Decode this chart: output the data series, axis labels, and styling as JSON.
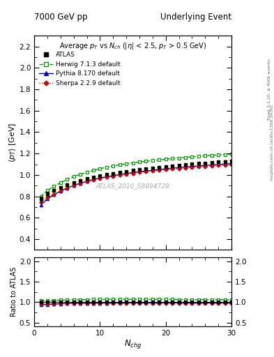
{
  "title_left": "7000 GeV pp",
  "title_right": "Underlying Event",
  "watermark": "ATLAS_2010_S8894728",
  "atlas_x": [
    1,
    2,
    3,
    4,
    5,
    6,
    7,
    8,
    9,
    10,
    11,
    12,
    13,
    14,
    15,
    16,
    17,
    18,
    19,
    20,
    21,
    22,
    23,
    24,
    25,
    26,
    27,
    28,
    29,
    30
  ],
  "atlas_y": [
    0.775,
    0.825,
    0.855,
    0.885,
    0.91,
    0.93,
    0.95,
    0.965,
    0.98,
    0.993,
    1.005,
    1.015,
    1.025,
    1.033,
    1.042,
    1.05,
    1.057,
    1.064,
    1.07,
    1.077,
    1.083,
    1.09,
    1.096,
    1.102,
    1.107,
    1.112,
    1.116,
    1.121,
    1.126,
    1.13
  ],
  "atlas_yerr": [
    0.02,
    0.018,
    0.015,
    0.013,
    0.012,
    0.011,
    0.01,
    0.01,
    0.009,
    0.009,
    0.008,
    0.008,
    0.008,
    0.008,
    0.008,
    0.007,
    0.007,
    0.007,
    0.007,
    0.007,
    0.007,
    0.007,
    0.007,
    0.007,
    0.007,
    0.007,
    0.007,
    0.007,
    0.007,
    0.007
  ],
  "herwig_x": [
    1,
    2,
    3,
    4,
    5,
    6,
    7,
    8,
    9,
    10,
    11,
    12,
    13,
    14,
    15,
    16,
    17,
    18,
    19,
    20,
    21,
    22,
    23,
    24,
    25,
    26,
    27,
    28,
    29,
    30
  ],
  "herwig_y": [
    0.8,
    0.855,
    0.893,
    0.928,
    0.958,
    0.985,
    1.005,
    1.025,
    1.043,
    1.058,
    1.072,
    1.084,
    1.094,
    1.104,
    1.113,
    1.121,
    1.128,
    1.135,
    1.141,
    1.147,
    1.153,
    1.158,
    1.163,
    1.169,
    1.174,
    1.179,
    1.183,
    1.187,
    1.191,
    1.196
  ],
  "pythia_x": [
    1,
    2,
    3,
    4,
    5,
    6,
    7,
    8,
    9,
    10,
    11,
    12,
    13,
    14,
    15,
    16,
    17,
    18,
    19,
    20,
    21,
    22,
    23,
    24,
    25,
    26,
    27,
    28,
    29,
    30
  ],
  "pythia_y": [
    0.72,
    0.775,
    0.815,
    0.848,
    0.878,
    0.902,
    0.923,
    0.941,
    0.957,
    0.971,
    0.983,
    0.994,
    1.004,
    1.013,
    1.022,
    1.03,
    1.037,
    1.044,
    1.05,
    1.057,
    1.063,
    1.068,
    1.074,
    1.079,
    1.084,
    1.089,
    1.093,
    1.097,
    1.102,
    1.106
  ],
  "sherpa_x": [
    1,
    2,
    3,
    4,
    5,
    6,
    7,
    8,
    9,
    10,
    11,
    12,
    13,
    14,
    15,
    16,
    17,
    18,
    19,
    20,
    21,
    22,
    23,
    24,
    25,
    26,
    27,
    28,
    29,
    30
  ],
  "sherpa_y": [
    0.745,
    0.79,
    0.82,
    0.852,
    0.878,
    0.9,
    0.92,
    0.938,
    0.952,
    0.966,
    0.978,
    0.988,
    0.998,
    1.007,
    1.015,
    1.023,
    1.03,
    1.037,
    1.043,
    1.049,
    1.055,
    1.061,
    1.066,
    1.071,
    1.076,
    1.08,
    1.085,
    1.089,
    1.093,
    1.097
  ],
  "atlas_color": "#000000",
  "herwig_color": "#009900",
  "pythia_color": "#0000cc",
  "sherpa_color": "#cc0000",
  "band_color": "#ffff99",
  "band_alpha": 0.85,
  "xlim": [
    0,
    30
  ],
  "ylim_main": [
    0.3,
    2.3
  ],
  "ylim_ratio": [
    0.4,
    2.1
  ],
  "yticks_main": [
    0.4,
    0.6,
    0.8,
    1.0,
    1.2,
    1.4,
    1.6,
    1.8,
    2.0,
    2.2
  ],
  "xticks_main": [
    0,
    10,
    20,
    30
  ],
  "yticks_ratio": [
    0.5,
    1.0,
    1.5,
    2.0
  ],
  "xticks_ratio": [
    0,
    10,
    20,
    30
  ]
}
